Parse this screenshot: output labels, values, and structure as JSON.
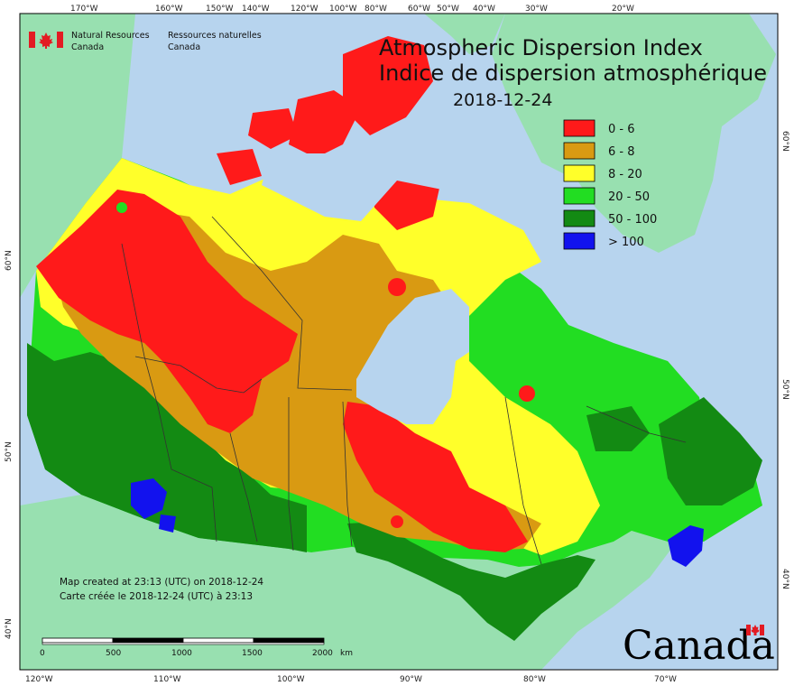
{
  "title": {
    "line1": "Atmospheric Dispersion Index",
    "line2": "Indice de dispersion atmosphérique",
    "date": "2018-12-24"
  },
  "organization": {
    "english": [
      "Natural Resources",
      "Canada"
    ],
    "french": [
      "Ressources naturelles",
      "Canada"
    ]
  },
  "legend": [
    {
      "label": "0 - 6",
      "color": "#ff1a1a"
    },
    {
      "label": "6 - 8",
      "color": "#d99a12"
    },
    {
      "label": "8 - 20",
      "color": "#ffff2a"
    },
    {
      "label": "20 - 50",
      "color": "#22dd22"
    },
    {
      "label": "50 - 100",
      "color": "#138a13"
    },
    {
      "label": "> 100",
      "color": "#1212ee"
    }
  ],
  "credits": {
    "english": "Map created at 23:13 (UTC) on 2018-12-24",
    "french": "Carte créée le 2018-12-24 (UTC) à 23:13"
  },
  "scale_bar": {
    "ticks": [
      "0",
      "500",
      "1000",
      "1500",
      "2000"
    ],
    "unit": "km"
  },
  "graticule": {
    "top": [
      "170°W",
      "160°W",
      "150°W",
      "140°W",
      "120°W",
      "100°W",
      "80°W",
      "60°W",
      "50°W",
      "40°W",
      "30°W",
      "20°W"
    ],
    "bottom": [
      "120°W",
      "110°W",
      "100°W",
      "90°W",
      "80°W",
      "70°W"
    ],
    "left": [
      "60°N",
      "50°N",
      "40°N"
    ],
    "right": [
      "60°N",
      "50°N",
      "40°N"
    ]
  },
  "wordmark": "Canada",
  "colors": {
    "ocean": "#b7d4ee",
    "land_outside": "#98e0b0"
  }
}
